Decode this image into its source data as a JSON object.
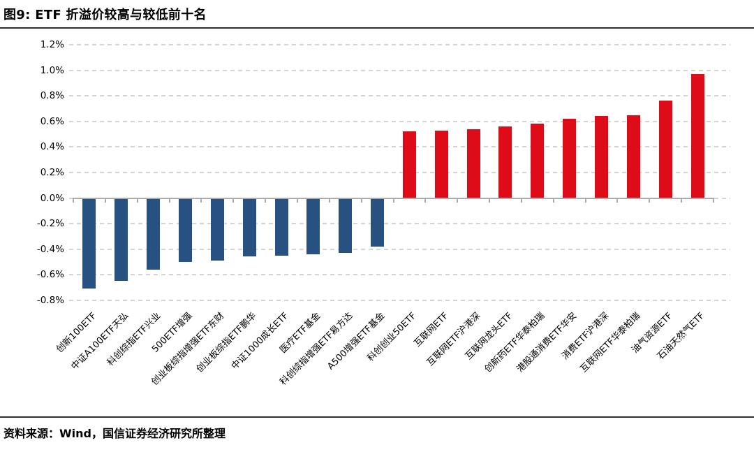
{
  "figure": {
    "title": "图9: ETF 折溢价较高与较低前十名",
    "source": "资料来源：Wind，国信证券经济研究所整理"
  },
  "chart_data": {
    "type": "bar",
    "title": "图9: ETF 折溢价较高与较低前十名",
    "xlabel": "",
    "ylabel": "",
    "unit": "%",
    "ylim": [
      -0.8,
      1.2
    ],
    "grid": "horizontal-dashed",
    "legend": "none",
    "yticks": [
      1.2,
      1.0,
      0.8,
      0.6,
      0.4,
      0.2,
      0.0,
      -0.2,
      -0.4,
      -0.6,
      -0.8
    ],
    "ytick_labels": [
      "1.2%",
      "1.0%",
      "0.8%",
      "0.6%",
      "0.4%",
      "0.2%",
      "0.0%",
      "-0.2%",
      "-0.4%",
      "-0.6%",
      "-0.8%"
    ],
    "categories": [
      "创新100ETF",
      "中证A100ETF天弘",
      "科创综指ETF兴业",
      "500ETF增强",
      "创业板综指增强ETF东财",
      "创业板综指ETF鹏华",
      "中证1000成长ETF",
      "医疗ETF基金",
      "科创综指增强ETF易方达",
      "A500增强ETF基金",
      "科创创业50ETF",
      "互联网ETF",
      "互联网ETF沪港深",
      "互联网龙头ETF",
      "创新药ETF华泰柏瑞",
      "港股通消费ETF华安",
      "消费ETF沪港深",
      "互联网ETF华泰柏瑞",
      "油气资源ETF",
      "石油天然气ETF"
    ],
    "values": [
      -0.7,
      -0.64,
      -0.55,
      -0.49,
      -0.48,
      -0.45,
      -0.44,
      -0.43,
      -0.42,
      -0.37,
      0.52,
      0.53,
      0.54,
      0.56,
      0.58,
      0.62,
      0.64,
      0.65,
      0.76,
      0.97
    ],
    "colors": {
      "positive": "#DE0B18",
      "negative": "#275180",
      "axis": "#ababab",
      "gridline": "#d4d4d4"
    }
  }
}
